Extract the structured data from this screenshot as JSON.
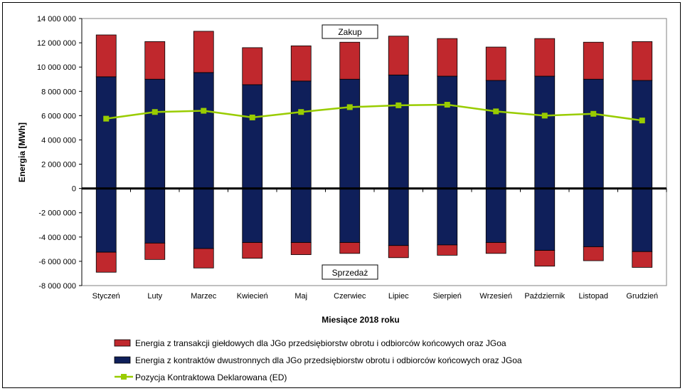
{
  "chart_data": {
    "type": "bar",
    "xlabel": "Miesiące 2018  roku",
    "ylabel": "Energia [MWh]",
    "ylim": [
      -8000000,
      14000000
    ],
    "yticks": [
      14000000,
      12000000,
      10000000,
      8000000,
      6000000,
      4000000,
      2000000,
      0,
      -2000000,
      -4000000,
      -6000000,
      -8000000
    ],
    "ytick_labels": [
      "14 000 000",
      "12 000 000",
      "10 000 000",
      "8 000 000",
      "6 000 000",
      "4 000 000",
      "2 000 000",
      "0",
      "-2 000 000",
      "-4 000 000",
      "-6 000 000",
      "-8 000 000"
    ],
    "categories": [
      "Styczeń",
      "Luty",
      "Marzec",
      "Kwiecień",
      "Maj",
      "Czerwiec",
      "Lipiec",
      "Sierpień",
      "Wrzesień",
      "Październik",
      "Listopad",
      "Grudzień"
    ],
    "series": [
      {
        "name": "Energia z kontraktów dwustronnych dla JGo przedsiębiorstw obrotu i odbiorców końcowych oraz JGoa",
        "color": "#0F1F5A",
        "purchase": [
          9200000,
          9000000,
          9550000,
          8550000,
          8850000,
          9000000,
          9350000,
          9250000,
          8900000,
          9250000,
          9000000,
          8900000
        ],
        "sale": [
          -5250000,
          -4500000,
          -4950000,
          -4450000,
          -4450000,
          -4450000,
          -4700000,
          -4650000,
          -4450000,
          -5100000,
          -4800000,
          -5200000
        ]
      },
      {
        "name": "Energia z transakcji giełdowych dla JGo przedsiębiorstw obrotu i odbiorców końcowych oraz JGoa",
        "color": "#C0282D",
        "purchase": [
          3450000,
          3100000,
          3400000,
          3050000,
          2900000,
          3050000,
          3200000,
          3100000,
          2750000,
          3100000,
          3050000,
          3200000
        ],
        "sale": [
          -1650000,
          -1350000,
          -1600000,
          -1300000,
          -1000000,
          -900000,
          -1000000,
          -850000,
          -900000,
          -1300000,
          -1150000,
          -1300000
        ]
      },
      {
        "name": "Pozycja Kontraktowa Deklarowana (ED)",
        "color": "#99CC00",
        "values": [
          5750000,
          6300000,
          6400000,
          5850000,
          6300000,
          6700000,
          6850000,
          6900000,
          6350000,
          6000000,
          6150000,
          5600000
        ]
      }
    ],
    "annotations": [
      "Zakup",
      "Sprzedaż"
    ],
    "grid": false,
    "legend_position": "bottom"
  }
}
